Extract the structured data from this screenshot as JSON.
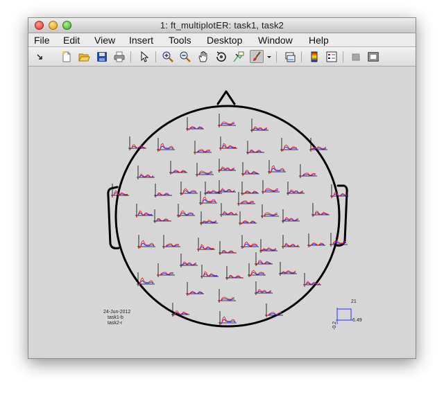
{
  "window": {
    "title": "1: ft_multiplotER: task1, task2"
  },
  "menubar": {
    "items": [
      {
        "label": "File"
      },
      {
        "label": "Edit"
      },
      {
        "label": "View"
      },
      {
        "label": "Insert"
      },
      {
        "label": "Tools"
      },
      {
        "label": "Desktop"
      },
      {
        "label": "Window"
      },
      {
        "label": "Help"
      }
    ]
  },
  "toolbar": {
    "icons": [
      "dock-arrow-icon",
      "new-figure-icon",
      "open-file-icon",
      "save-icon",
      "print-icon",
      "select-arrow-icon",
      "zoom-in-icon",
      "zoom-out-icon",
      "pan-hand-icon",
      "rotate-3d-icon",
      "data-cursor-icon",
      "brush-icon",
      "dropdown-arrow-icon",
      "link-plot-icon",
      "colorbar-icon",
      "legend-icon",
      "hide-plot-tools-icon",
      "show-plot-tools-icon"
    ]
  },
  "figure": {
    "legend_lines": [
      "24-Jun-2012",
      "task1-b",
      "task2-r"
    ],
    "scale": {
      "top_label": "21",
      "right_label": "6.49",
      "left_label": "-0.2"
    },
    "colors": {
      "head": "#000000",
      "task1": "#2222ff",
      "task2": "#ff2222",
      "background": "#d6d6d6"
    }
  }
}
